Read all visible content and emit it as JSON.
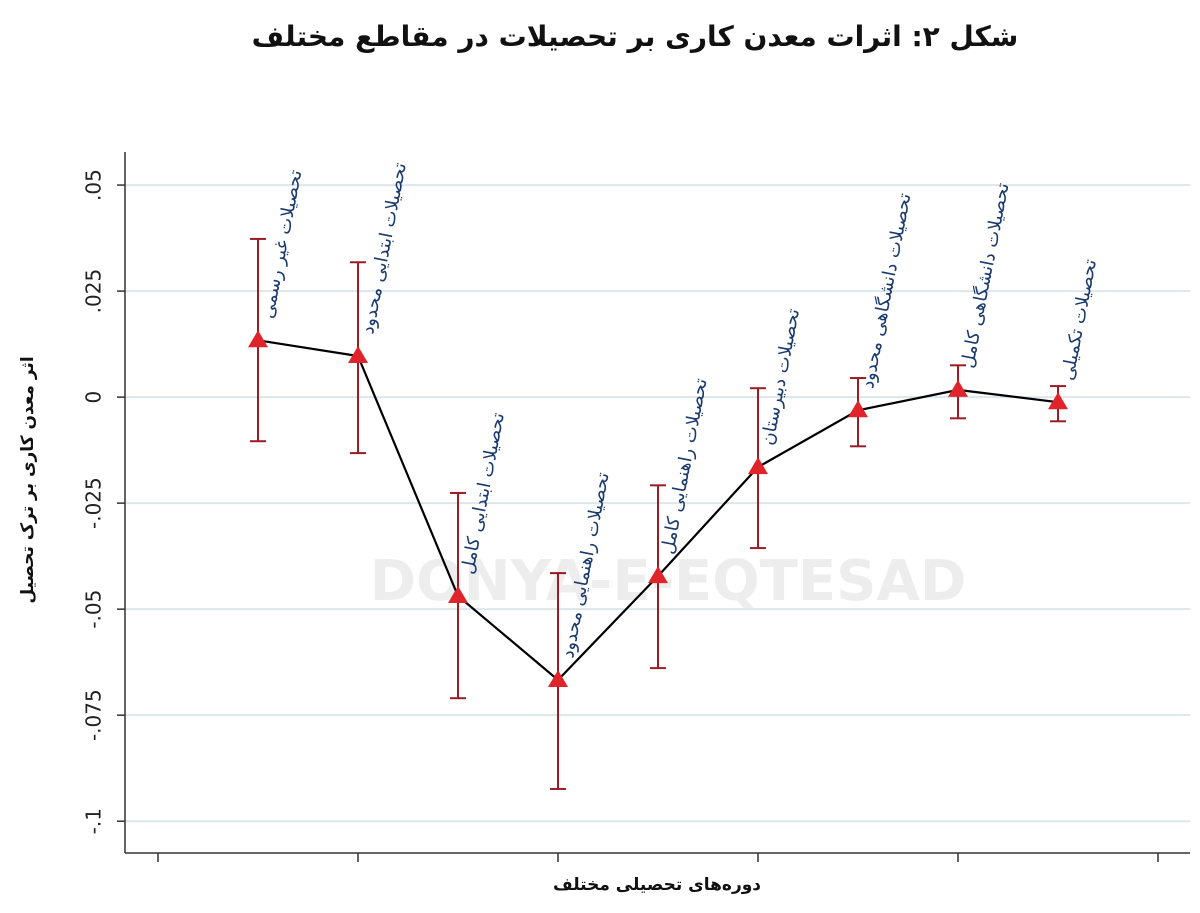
{
  "chart_data": {
    "type": "line",
    "title": "شکل ۲: اثرات معدن کاری بر تحصیلات در مقاطع مختلف",
    "watermark": "DONYA-E-EQTESAD",
    "x_label": "دوره‌های تحصیلی مختلف",
    "y_label": "اثر معدن کاری بر ترک تحصیل",
    "x": [
      1,
      2,
      3,
      4,
      5,
      6,
      7,
      8,
      9
    ],
    "point_labels": [
      "تحصیلات غیر رسمی",
      "تحصیلات ابتدایی محدود",
      "تحصیلات ابتدایی کامل",
      "تحصیلات راهنمایی محدود",
      "تحصیلات راهنمایی کامل",
      "تحصیلات دبیرستان",
      "تحصیلات دانشگاهی محدود",
      "تحصیلات دانشگاهی کامل",
      "تحصیلات تکمیلی"
    ],
    "series": [
      {
        "color": "#e0242b",
        "line_color": "#000000",
        "error_color": "#9b1c25",
        "values": [
          0.0134,
          0.0097,
          -0.0469,
          -0.0667,
          -0.0422,
          -0.0165,
          -0.0031,
          0.0017,
          -0.0012
        ],
        "lower": [
          -0.0104,
          -0.0132,
          -0.071,
          -0.0924,
          -0.0639,
          -0.0356,
          -0.0116,
          -0.005,
          -0.0057
        ],
        "upper": [
          0.0373,
          0.0318,
          -0.0226,
          -0.0415,
          -0.0208,
          0.0021,
          0.0045,
          0.0075,
          0.0026
        ]
      }
    ],
    "xlim": [
      -0.33,
      10.32
    ],
    "xticks": [
      0,
      2,
      4,
      6,
      8,
      10
    ],
    "ylim": [
      -0.1075,
      0.0578
    ],
    "yticks": [
      {
        "value": 0.05,
        "label": ".05"
      },
      {
        "value": 0.025,
        "label": ".025"
      },
      0,
      {
        "value": -0.025,
        "label": "-.025"
      },
      {
        "value": -0.05,
        "label": "-.05"
      },
      {
        "value": -0.075,
        "label": "-.075"
      },
      {
        "value": -0.1,
        "label": "-.1"
      }
    ],
    "grid": true
  }
}
